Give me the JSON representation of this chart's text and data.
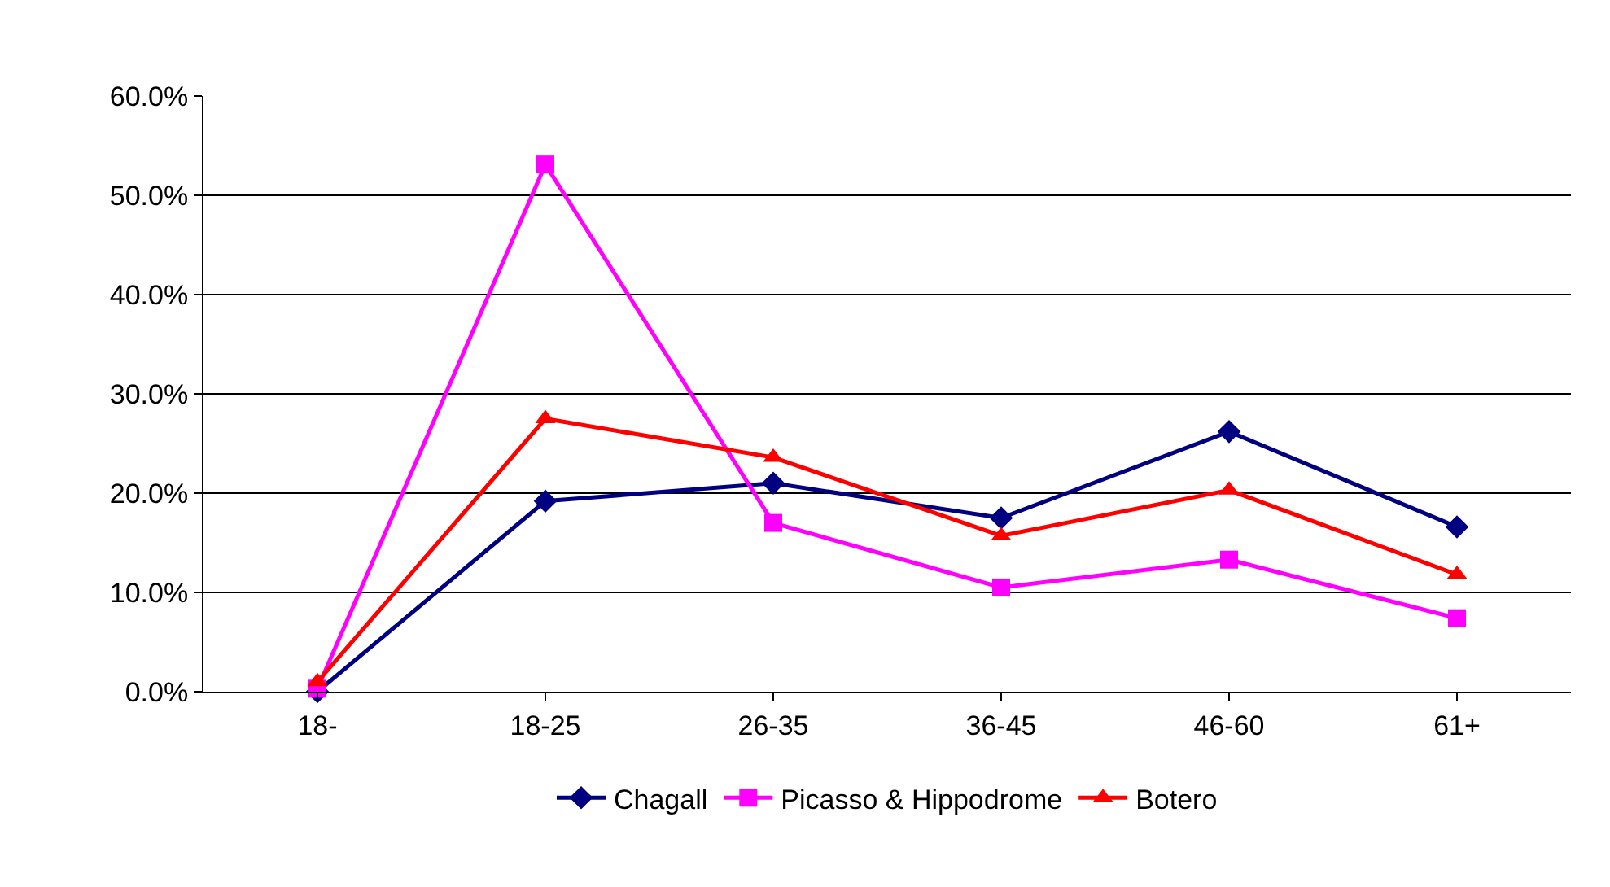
{
  "chart_data": {
    "type": "line",
    "categories": [
      "18-",
      "18-25",
      "26-35",
      "36-45",
      "46-60",
      "61+"
    ],
    "series": [
      {
        "name": "Chagall",
        "color": "#000080",
        "marker": "diamond",
        "values": [
          0.0,
          19.2,
          21.0,
          17.5,
          26.2,
          16.6
        ]
      },
      {
        "name": "Picasso & Hippodrome",
        "color": "#ff00ff",
        "marker": "square",
        "values": [
          0.3,
          53.1,
          17.0,
          10.5,
          13.3,
          7.4
        ]
      },
      {
        "name": "Botero",
        "color": "#ff0000",
        "marker": "triangle",
        "values": [
          1.0,
          27.5,
          23.6,
          15.7,
          20.3,
          11.8
        ]
      }
    ],
    "ylim": [
      0,
      60
    ],
    "yticks": [
      {
        "value": 0,
        "label": "0.0%"
      },
      {
        "value": 10,
        "label": "10.0%"
      },
      {
        "value": 20,
        "label": "20.0%"
      },
      {
        "value": 30,
        "label": "30.0%"
      },
      {
        "value": 40,
        "label": "40.0%"
      },
      {
        "value": 50,
        "label": "50.0%"
      },
      {
        "value": 60,
        "label": "60.0%"
      }
    ],
    "grid": "y",
    "legend": "bottom",
    "line_style": "solid"
  }
}
